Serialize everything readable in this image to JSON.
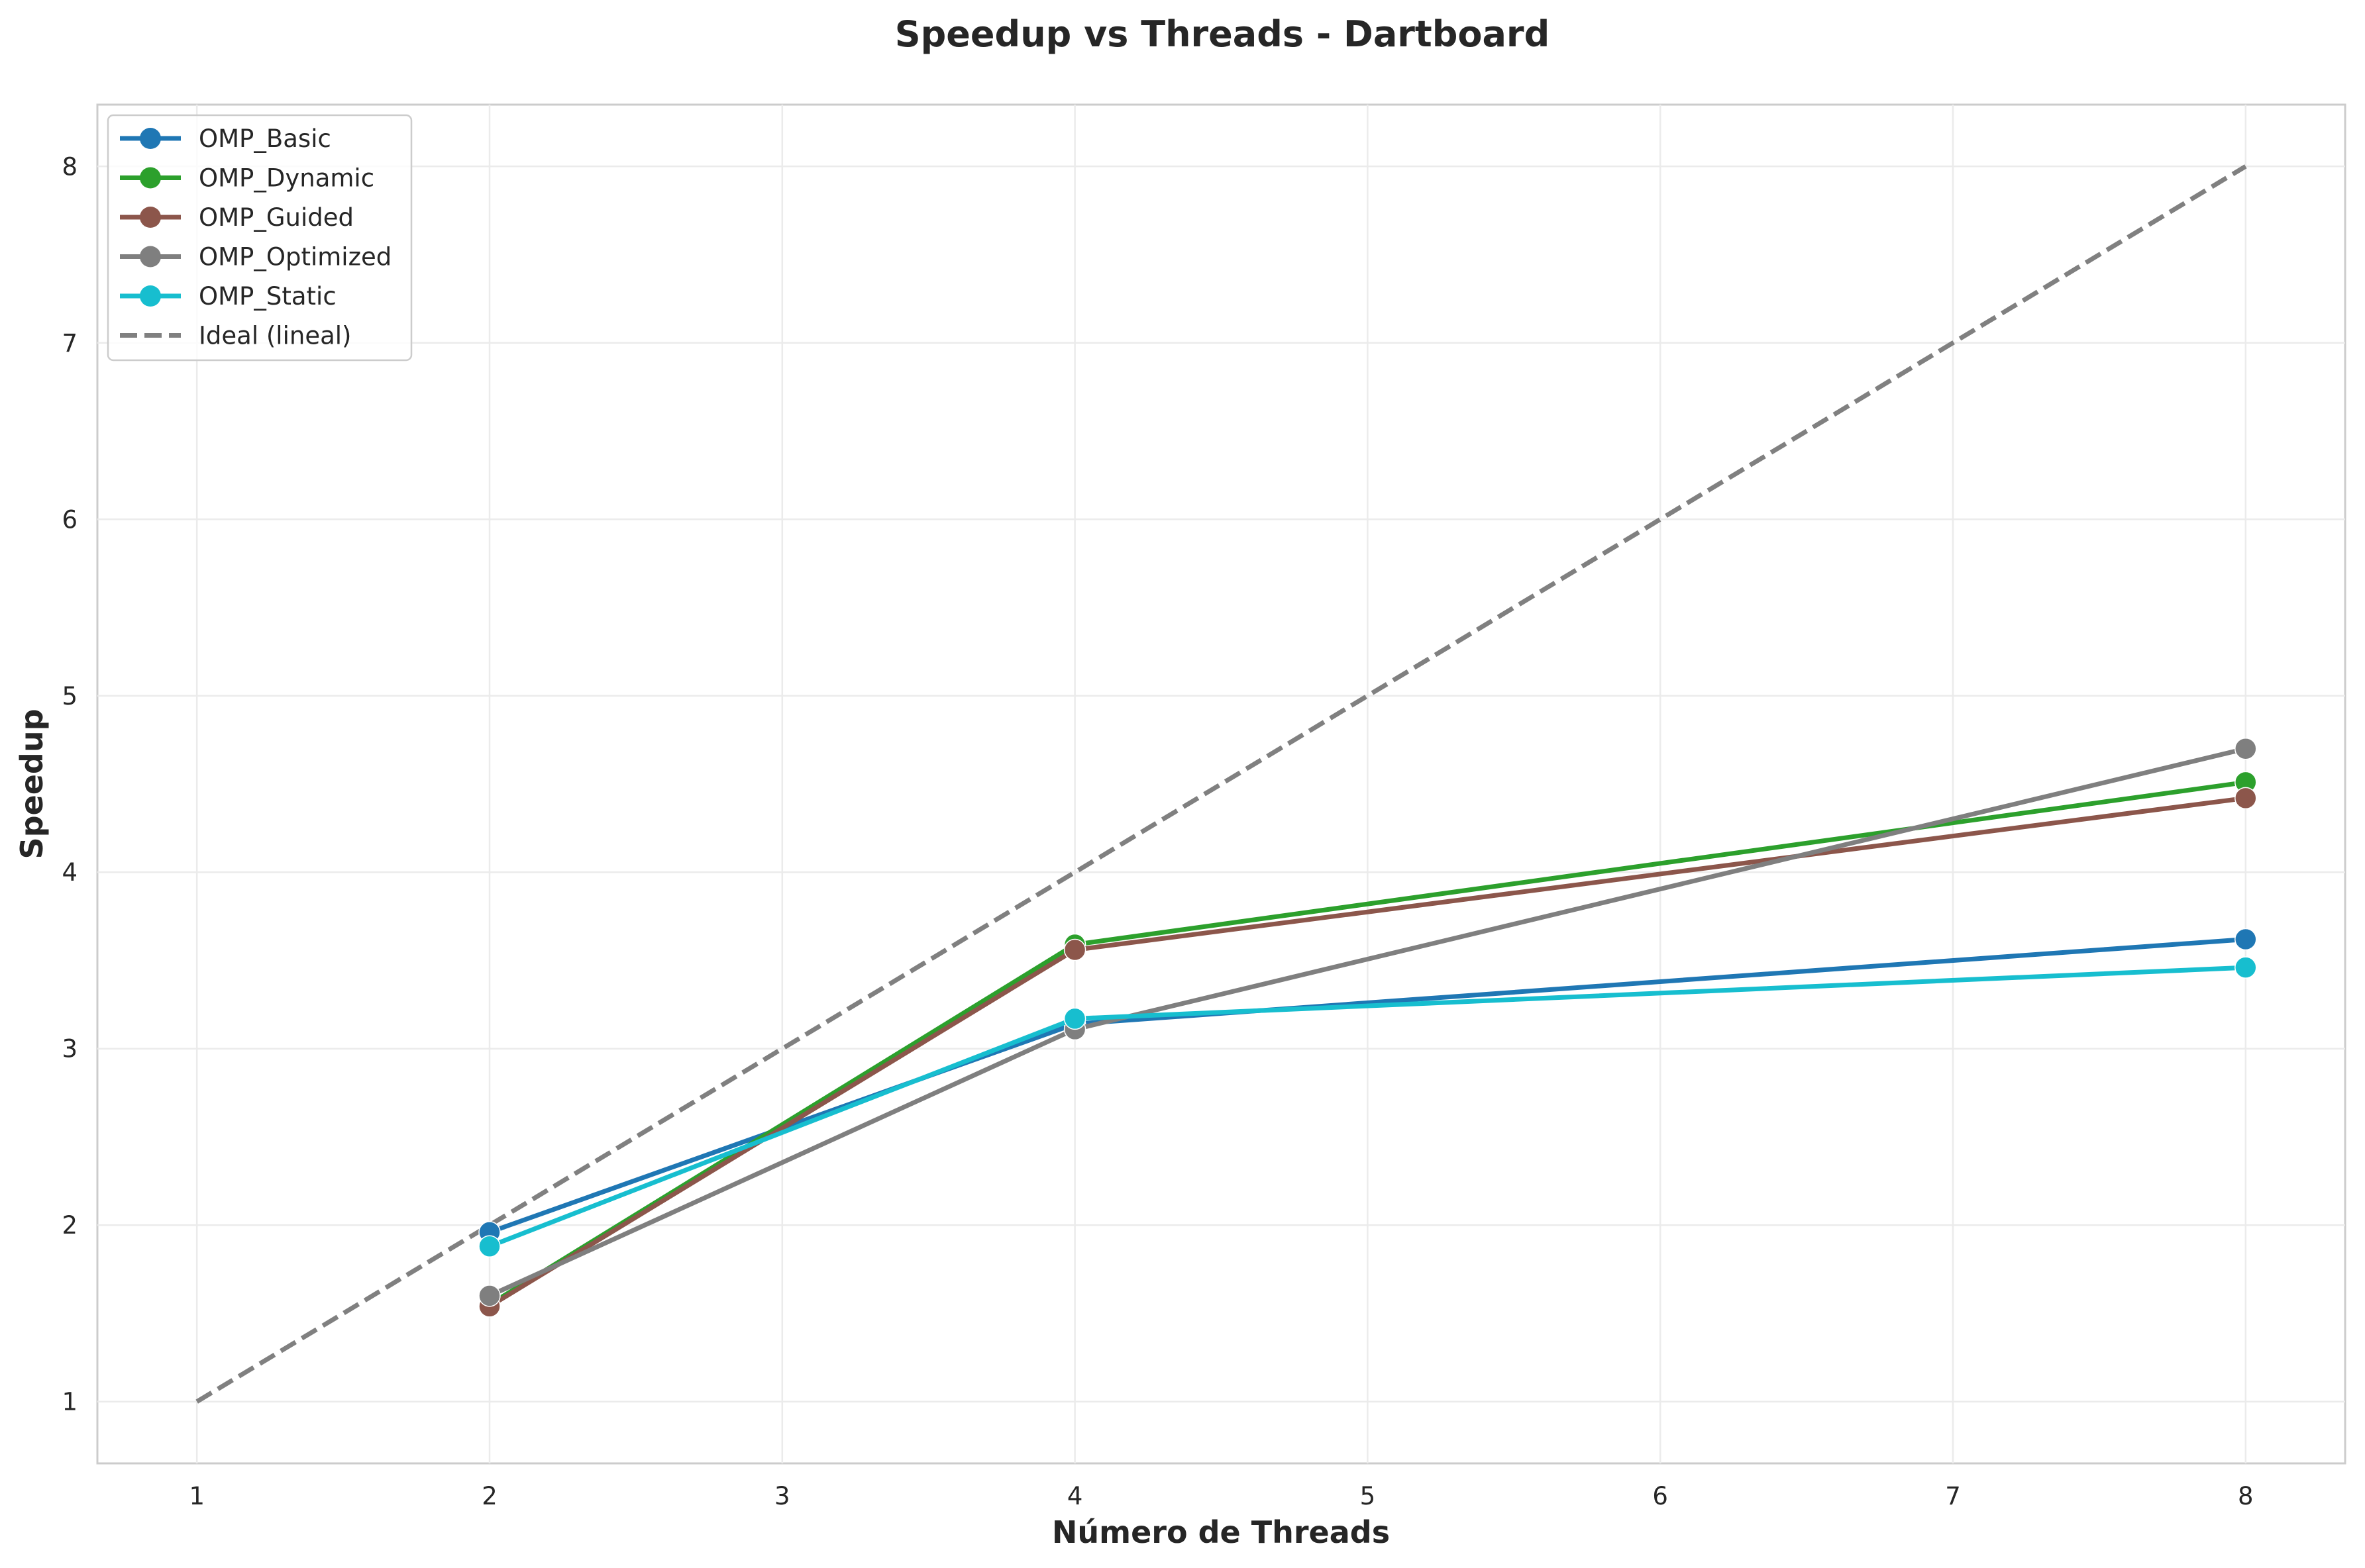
{
  "chart_data": {
    "type": "line",
    "title": "Speedup vs Threads - Dartboard",
    "xlabel": "Número de Threads",
    "ylabel": "Speedup",
    "xlim": [
      0.66,
      8.34
    ],
    "ylim": [
      0.65,
      8.35
    ],
    "xticks": [
      1,
      2,
      3,
      4,
      5,
      6,
      7,
      8
    ],
    "yticks": [
      1,
      2,
      3,
      4,
      5,
      6,
      7,
      8
    ],
    "grid": true,
    "legend_position": "top-left",
    "series": [
      {
        "name": "OMP_Basic",
        "color": "#1f77b4",
        "style": "solid-marker",
        "x": [
          2,
          4,
          8
        ],
        "values": [
          1.96,
          3.14,
          3.62
        ]
      },
      {
        "name": "OMP_Dynamic",
        "color": "#2ca02c",
        "style": "solid-marker",
        "x": [
          2,
          4,
          8
        ],
        "values": [
          1.55,
          3.59,
          4.51
        ]
      },
      {
        "name": "OMP_Guided",
        "color": "#8c564b",
        "style": "solid-marker",
        "x": [
          2,
          4,
          8
        ],
        "values": [
          1.54,
          3.56,
          4.42
        ]
      },
      {
        "name": "OMP_Optimized",
        "color": "#7f7f7f",
        "style": "solid-marker",
        "x": [
          2,
          4,
          8
        ],
        "values": [
          1.6,
          3.11,
          4.7
        ]
      },
      {
        "name": "OMP_Static",
        "color": "#17becf",
        "style": "solid-marker",
        "x": [
          2,
          4,
          8
        ],
        "values": [
          1.88,
          3.17,
          3.46
        ]
      },
      {
        "name": "Ideal (lineal)",
        "color": "#808080",
        "style": "dashed",
        "x": [
          1,
          2,
          3,
          4,
          5,
          6,
          7,
          8
        ],
        "values": [
          1,
          2,
          3,
          4,
          5,
          6,
          7,
          8
        ]
      }
    ]
  }
}
